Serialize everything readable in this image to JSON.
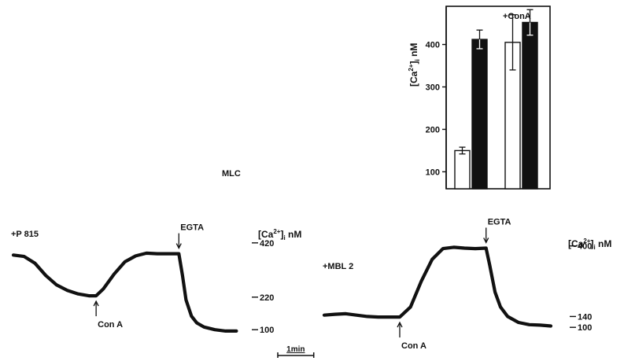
{
  "labels": {
    "mlc": "MLC",
    "plus_cona": "+ConA",
    "ca_unit": "nM",
    "ca_base": "Ca",
    "ca_sup": "2+",
    "ca_sub": "i"
  },
  "chart_data": [
    {
      "type": "bar",
      "ylabel": "[Ca2+]i nM",
      "ylim": [
        60,
        490
      ],
      "yticks": [
        100,
        200,
        300,
        400
      ],
      "annotation": "+ConA",
      "groups": [
        {
          "name": "",
          "bars": [
            {
              "fill": "white",
              "value": 150,
              "error": 8
            },
            {
              "fill": "black",
              "value": 412,
              "error": 22
            }
          ]
        },
        {
          "name": "+ConA",
          "bars": [
            {
              "fill": "white",
              "value": 405,
              "error": 65
            },
            {
              "fill": "black",
              "value": 452,
              "error": 30
            }
          ]
        }
      ]
    },
    {
      "type": "line",
      "title": "+P 815",
      "ylabel": "[Ca2+]i nM",
      "yticks": [
        100,
        220,
        420
      ],
      "ylim": [
        60,
        460
      ],
      "x_unit": "min",
      "scale_bar": "1min",
      "xlim": [
        0,
        6.3
      ],
      "events": [
        {
          "label": "Con A",
          "t": 2.3
        },
        {
          "label": "EGTA",
          "t": 4.6
        }
      ],
      "x": [
        0,
        0.3,
        0.6,
        0.9,
        1.2,
        1.5,
        1.8,
        2.1,
        2.3,
        2.5,
        2.8,
        3.1,
        3.4,
        3.7,
        4.0,
        4.3,
        4.6,
        4.7,
        4.8,
        4.95,
        5.1,
        5.3,
        5.6,
        5.9,
        6.2
      ],
      "y": [
        375,
        370,
        345,
        300,
        265,
        245,
        232,
        225,
        225,
        250,
        305,
        350,
        372,
        382,
        380,
        380,
        380,
        300,
        210,
        150,
        125,
        110,
        100,
        95,
        95
      ]
    },
    {
      "type": "line",
      "title": "+MBL 2",
      "ylabel": "[Ca2+]i nM",
      "yticks": [
        100,
        140,
        400
      ],
      "ylim": [
        60,
        460
      ],
      "x_unit": "min",
      "scale_bar": "",
      "xlim": [
        0,
        6.3
      ],
      "events": [
        {
          "label": "Con A",
          "t": 2.1
        },
        {
          "label": "EGTA",
          "t": 4.5
        }
      ],
      "x": [
        0,
        0.3,
        0.6,
        0.9,
        1.2,
        1.5,
        1.8,
        2.1,
        2.4,
        2.7,
        3.0,
        3.3,
        3.6,
        3.9,
        4.2,
        4.5,
        4.6,
        4.75,
        4.9,
        5.1,
        5.4,
        5.7,
        6.0,
        6.3
      ],
      "y": [
        145,
        148,
        150,
        145,
        140,
        138,
        138,
        138,
        175,
        270,
        350,
        390,
        395,
        392,
        390,
        392,
        330,
        230,
        175,
        140,
        118,
        110,
        108,
        105
      ]
    }
  ]
}
